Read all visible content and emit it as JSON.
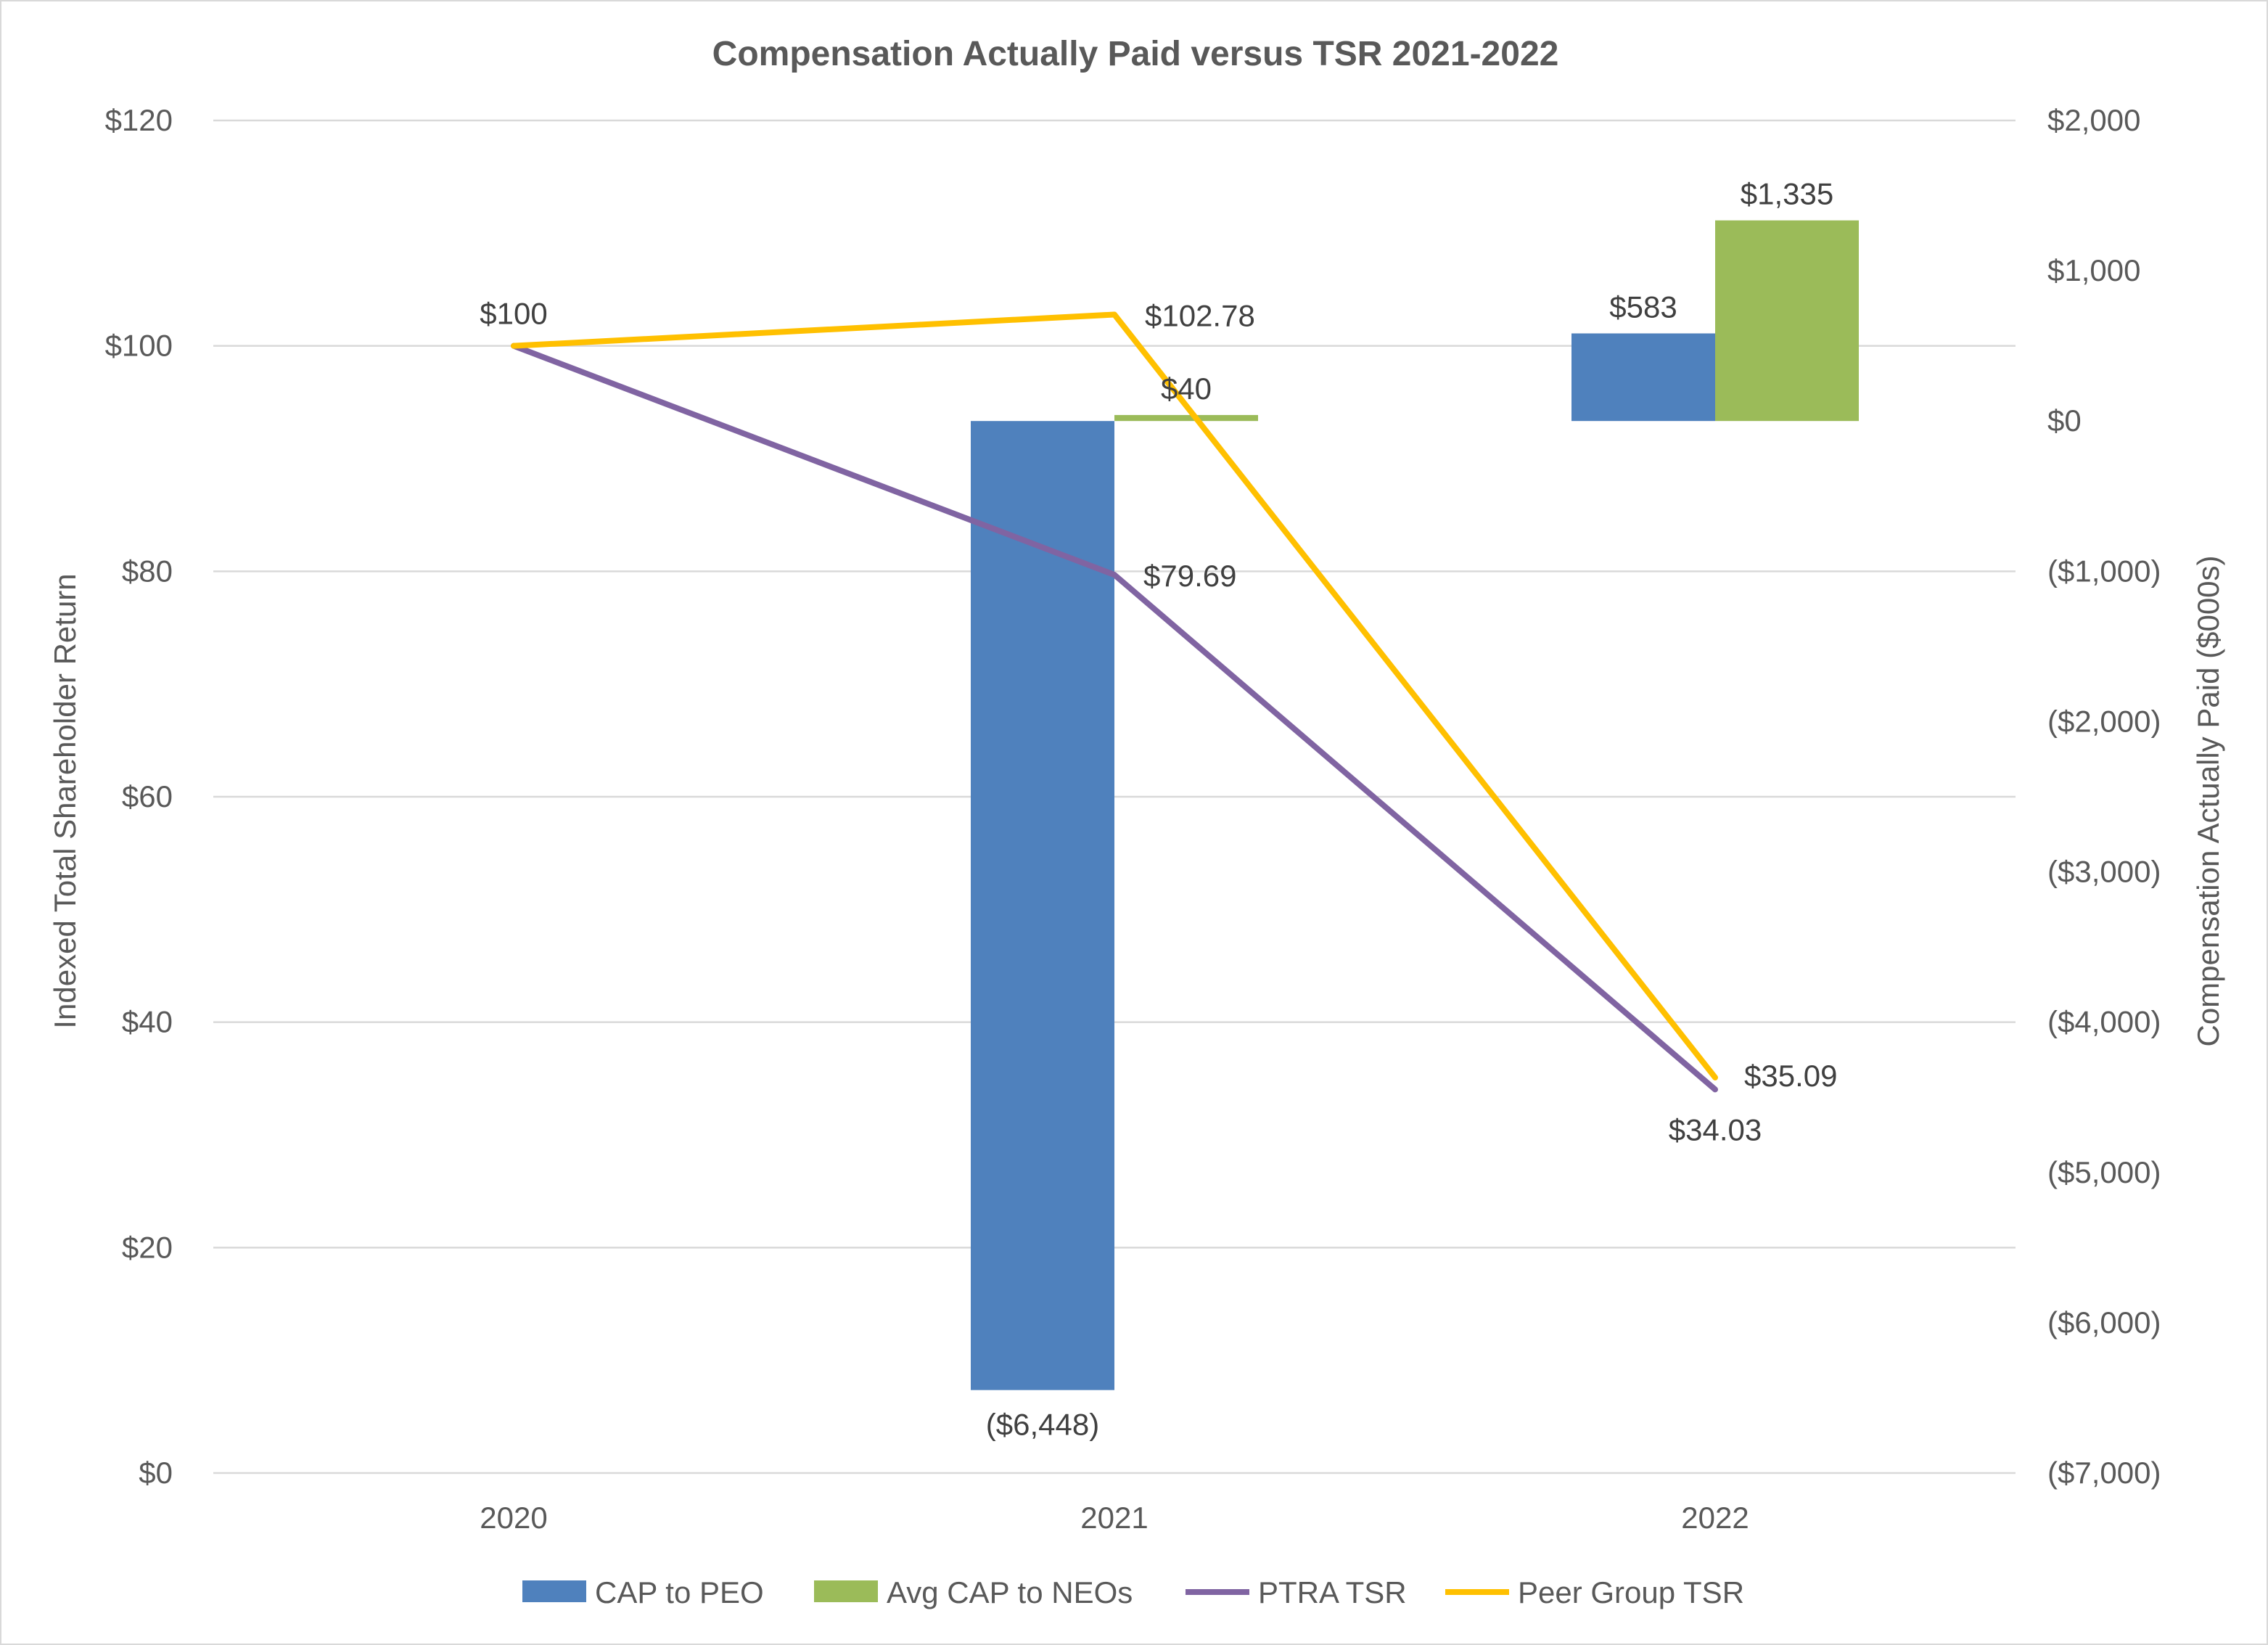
{
  "chart_data": {
    "type": "bar+line",
    "title": "Compensation Actually Paid versus TSR 2021-2022",
    "categories": [
      "2020",
      "2021",
      "2022"
    ],
    "y_left": {
      "label": "Indexed Total Shareholder Return",
      "range": [
        0,
        120
      ],
      "ticks": [
        0,
        20,
        40,
        60,
        80,
        100,
        120
      ],
      "tick_labels": [
        "$0",
        "$20",
        "$40",
        "$60",
        "$80",
        "$100",
        "$120"
      ]
    },
    "y_right": {
      "label": "Compensation Actually Paid ($000s)",
      "range": [
        -7000,
        2000
      ],
      "ticks": [
        -7000,
        -6000,
        -5000,
        -4000,
        -3000,
        -2000,
        -1000,
        0,
        1000,
        2000
      ],
      "tick_labels": [
        "($7,000)",
        "($6,000)",
        "($5,000)",
        "($4,000)",
        "($3,000)",
        "($2,000)",
        "($1,000)",
        "$0",
        "$1,000",
        "$2,000"
      ]
    },
    "grid": true,
    "legend_position": "bottom",
    "bar_series": [
      {
        "name": "CAP to PEO",
        "axis": "right",
        "color": "#4F81BD",
        "values": [
          null,
          -6448,
          583
        ],
        "labels": [
          "",
          "($6,448)",
          "$583"
        ],
        "label_colors": [
          "#404040",
          "#FF0000",
          "#404040"
        ]
      },
      {
        "name": "Avg CAP to NEOs",
        "axis": "right",
        "color": "#9BBB59",
        "values": [
          null,
          40,
          1335
        ],
        "labels": [
          "",
          "$40",
          "$1,335"
        ],
        "label_colors": [
          "#404040",
          "#404040",
          "#404040"
        ]
      }
    ],
    "line_series": [
      {
        "name": "PTRA TSR",
        "axis": "left",
        "color": "#8064A2",
        "values": [
          100,
          79.69,
          34.03
        ],
        "labels": [
          "",
          "$79.69",
          "$34.03"
        ]
      },
      {
        "name": "Peer Group TSR",
        "axis": "left",
        "color": "#FFC000",
        "values": [
          100,
          102.78,
          35.09
        ],
        "labels": [
          "$100",
          "$102.78",
          "$35.09"
        ]
      }
    ]
  }
}
